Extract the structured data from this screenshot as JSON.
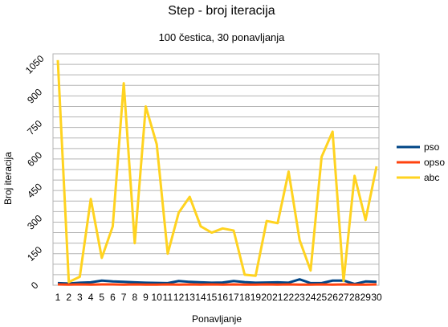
{
  "chart_data": {
    "type": "line",
    "title": "Step - broj iteracija",
    "subtitle": "100 čestica, 30 ponavljanja",
    "xlabel": "Ponavljanje",
    "ylabel": "Broj iteracija",
    "categories": [
      "1",
      "2",
      "3",
      "4",
      "5",
      "6",
      "7",
      "8",
      "9",
      "10",
      "11",
      "12",
      "13",
      "14",
      "15",
      "16",
      "17",
      "18",
      "19",
      "20",
      "21",
      "22",
      "23",
      "24",
      "25",
      "26",
      "27",
      "28",
      "29",
      "30"
    ],
    "yticks": [
      "0",
      "150",
      "300",
      "450",
      "600",
      "750",
      "900",
      "1050"
    ],
    "ylim": [
      0,
      1050
    ],
    "grid": true,
    "legend_position": "right",
    "series": [
      {
        "name": "pso",
        "color": "#004586",
        "values": [
          10,
          8,
          12,
          14,
          22,
          18,
          16,
          14,
          12,
          11,
          10,
          20,
          16,
          14,
          12,
          13,
          20,
          15,
          12,
          13,
          14,
          12,
          28,
          10,
          10,
          22,
          22,
          6,
          18,
          16
        ]
      },
      {
        "name": "opso",
        "color": "#ff420e",
        "values": [
          4,
          3,
          4,
          3,
          4,
          4,
          3,
          4,
          3,
          3,
          4,
          3,
          4,
          3,
          4,
          3,
          4,
          3,
          3,
          4,
          3,
          4,
          3,
          3,
          4,
          3,
          4,
          3,
          3,
          4
        ]
      },
      {
        "name": "abc",
        "color": "#ffd320",
        "values": [
          1070,
          15,
          40,
          410,
          130,
          280,
          960,
          200,
          850,
          670,
          150,
          345,
          420,
          280,
          250,
          270,
          260,
          50,
          45,
          305,
          295,
          540,
          215,
          70,
          610,
          730,
          20,
          520,
          310,
          565
        ]
      }
    ]
  }
}
